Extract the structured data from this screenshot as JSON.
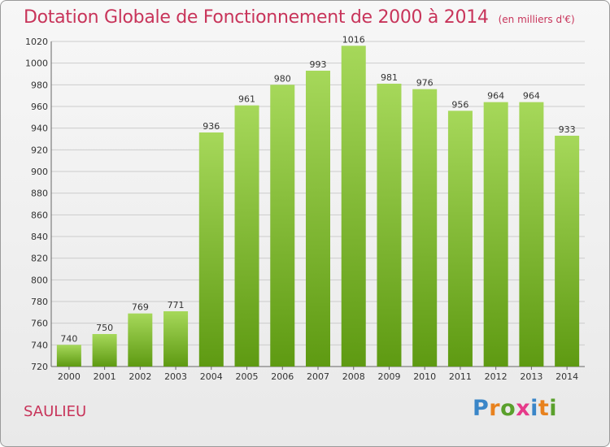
{
  "title": "Dotation Globale de Fonctionnement de 2000 à 2014",
  "subtitle": "(en milliers d'€)",
  "commune": "SAULIEU",
  "logo": {
    "letters": [
      "P",
      "r",
      "o",
      "x",
      "i",
      "t",
      "i"
    ],
    "colors": [
      "#3a86c8",
      "#e8821e",
      "#5aa02c",
      "#e63a8a",
      "#3a86c8",
      "#e8821e",
      "#5aa02c"
    ]
  },
  "colors": {
    "title": "#c8345a",
    "bar_top": "#a6d85a",
    "bar_bottom": "#5e9a12",
    "grid": "#cccccc"
  },
  "chart_data": {
    "type": "bar",
    "title": "Dotation Globale de Fonctionnement de 2000 à 2014",
    "subtitle": "(en milliers d'€)",
    "categories": [
      "2000",
      "2001",
      "2002",
      "2003",
      "2004",
      "2005",
      "2006",
      "2007",
      "2008",
      "2009",
      "2010",
      "2011",
      "2012",
      "2013",
      "2014"
    ],
    "values": [
      740,
      750,
      769,
      771,
      936,
      961,
      980,
      993,
      1016,
      981,
      976,
      956,
      964,
      964,
      933
    ],
    "ylim": [
      720,
      1020
    ],
    "yticks": [
      720,
      740,
      760,
      780,
      800,
      820,
      840,
      860,
      880,
      900,
      920,
      940,
      960,
      980,
      1000,
      1020
    ],
    "grid": true,
    "xlabel": "",
    "ylabel": ""
  }
}
